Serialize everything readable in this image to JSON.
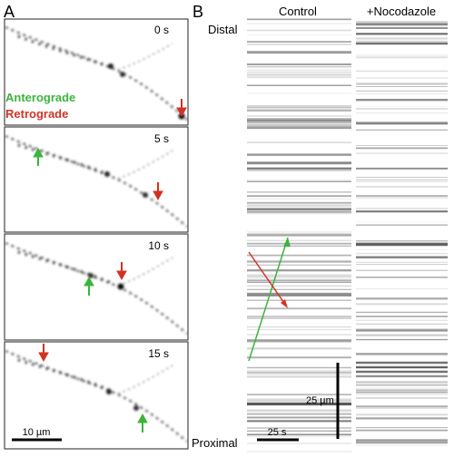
{
  "panel_a": {
    "letter": "A",
    "legend": {
      "anterograde": "Anterograde",
      "retrograde": "Retrograde"
    },
    "frames": [
      {
        "time": "0 s",
        "arrows": [
          {
            "kind": "retrograde",
            "dir": "down"
          }
        ]
      },
      {
        "time": "5 s",
        "arrows": [
          {
            "kind": "anterograde",
            "dir": "up"
          },
          {
            "kind": "retrograde",
            "dir": "down"
          }
        ]
      },
      {
        "time": "10 s",
        "arrows": [
          {
            "kind": "anterograde",
            "dir": "up"
          },
          {
            "kind": "retrograde",
            "dir": "down"
          }
        ]
      },
      {
        "time": "15 s",
        "arrows": [
          {
            "kind": "retrograde",
            "dir": "down"
          },
          {
            "kind": "anterograde",
            "dir": "up"
          }
        ]
      }
    ],
    "scalebar": "10 µm"
  },
  "panel_b": {
    "letter": "B",
    "kymographs": [
      {
        "title": "Control"
      },
      {
        "title": "+Nocodazole"
      }
    ],
    "axis": {
      "top": "Distal",
      "bottom": "Proximal"
    },
    "scalebar_time": "25 s",
    "scalebar_distance": "25 µm"
  },
  "colors": {
    "anterograde": "#3cb43c",
    "retrograde": "#d23223",
    "ink": "#000000"
  }
}
